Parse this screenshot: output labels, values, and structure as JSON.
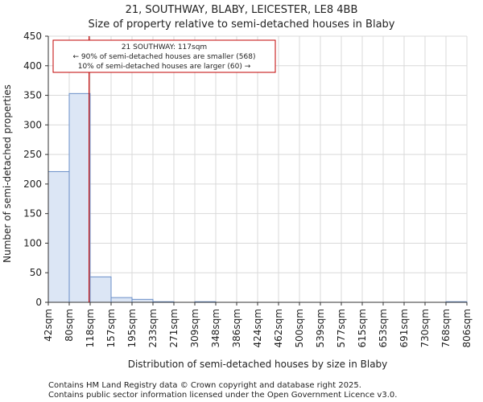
{
  "chart_data": {
    "type": "histogram",
    "title_line1": "21, SOUTHWAY, BLABY, LEICESTER, LE8 4BB",
    "title_line2": "Size of property relative to semi-detached houses in Blaby",
    "xlabel": "Distribution of semi-detached houses by size in Blaby",
    "ylabel": "Number of semi-detached properties",
    "ylim": [
      0,
      450
    ],
    "yticks": [
      0,
      50,
      100,
      150,
      200,
      250,
      300,
      350,
      400,
      450
    ],
    "bin_edges": [
      "42sqm",
      "80sqm",
      "118sqm",
      "157sqm",
      "195sqm",
      "233sqm",
      "271sqm",
      "309sqm",
      "348sqm",
      "386sqm",
      "424sqm",
      "462sqm",
      "500sqm",
      "539sqm",
      "577sqm",
      "615sqm",
      "653sqm",
      "691sqm",
      "730sqm",
      "768sqm",
      "806sqm"
    ],
    "values": [
      221,
      353,
      43,
      8,
      5,
      1,
      0,
      1,
      0,
      0,
      0,
      0,
      0,
      0,
      0,
      0,
      0,
      0,
      0,
      1
    ],
    "marker_position_bins": 1.95,
    "annotation": {
      "line1": "21 SOUTHWAY: 117sqm",
      "line2": "← 90% of semi-detached houses are smaller (568)",
      "line3": "10% of semi-detached houses are larger (60) →"
    },
    "colors": {
      "bar_fill": "#dce6f5",
      "bar_edge": "#6a8fc8",
      "marker": "#c00000",
      "grid": "#d9d9d9"
    }
  },
  "footer": {
    "line1": "Contains HM Land Registry data © Crown copyright and database right 2025.",
    "line2": "Contains public sector information licensed under the Open Government Licence v3.0."
  }
}
